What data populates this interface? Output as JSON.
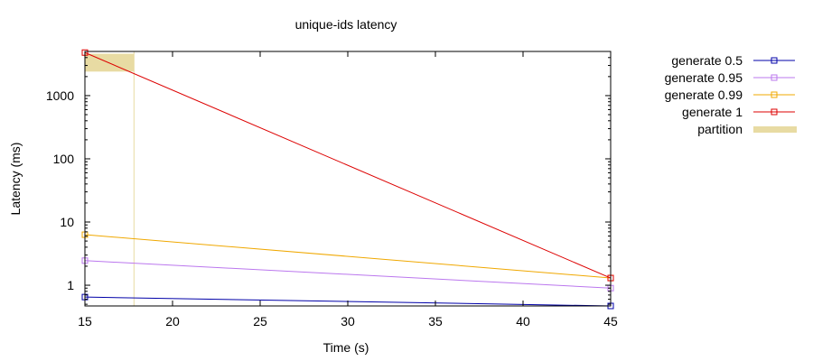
{
  "chart_data": {
    "type": "line",
    "title": "unique-ids latency",
    "xlabel": "Time (s)",
    "ylabel": "Latency (ms)",
    "xlim": [
      15,
      45
    ],
    "ylim": [
      0.47,
      5000
    ],
    "yscale": "log",
    "xticks": [
      15,
      20,
      25,
      30,
      35,
      40,
      45
    ],
    "xtick_labels": [
      "15",
      "20",
      "25",
      "30",
      "35",
      "40",
      "45"
    ],
    "yticks": [
      1,
      10,
      100,
      1000
    ],
    "ytick_labels": [
      "1",
      "10",
      "100",
      "1000"
    ],
    "legend_position": "outside-right",
    "grid": false,
    "series": [
      {
        "name": "generate 0.5",
        "color": "#0000a8",
        "marker": "square-open",
        "x": [
          15,
          45
        ],
        "y": [
          0.65,
          0.47
        ]
      },
      {
        "name": "generate 0.95",
        "color": "#bb77ee",
        "marker": "square-open",
        "x": [
          15,
          45
        ],
        "y": [
          2.45,
          0.9
        ]
      },
      {
        "name": "generate 0.99",
        "color": "#f0a800",
        "marker": "square-open",
        "x": [
          15,
          45
        ],
        "y": [
          6.3,
          1.3
        ]
      },
      {
        "name": "generate 1",
        "color": "#dd0000",
        "marker": "square-open",
        "x": [
          15,
          45
        ],
        "y": [
          4800,
          1.3
        ]
      }
    ],
    "partition": {
      "name": "partition",
      "color": "#e8dba3",
      "x_start": 15,
      "x_end": 17.8,
      "y_low": 2400,
      "y_high": 4600
    }
  }
}
